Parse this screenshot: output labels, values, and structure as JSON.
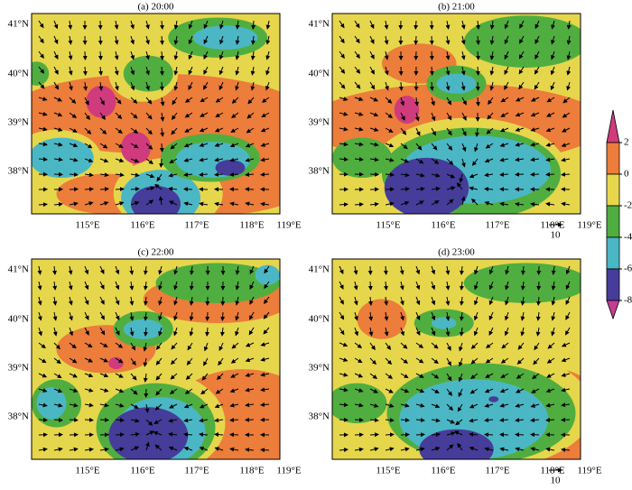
{
  "panels": [
    {
      "title": "(a) 20:00"
    },
    {
      "title": "(b) 21:00"
    },
    {
      "title": "(c) 22:00"
    },
    {
      "title": "(d) 23:00"
    }
  ],
  "x_ticks": [
    "115°E",
    "116°E",
    "117°E",
    "118°E",
    "119°E"
  ],
  "y_ticks": [
    "41°N",
    "40°N",
    "39°N",
    "38°N"
  ],
  "reference_arrow": {
    "label": "10"
  },
  "colorbar": {
    "ticks": [
      2,
      0,
      -2,
      -4,
      -6,
      -8
    ],
    "colors": [
      "#cf3b7c",
      "#ec7d3a",
      "#e6d64c",
      "#4fae3f",
      "#4bb7c5",
      "#463c9a",
      "#c23e95"
    ]
  }
}
